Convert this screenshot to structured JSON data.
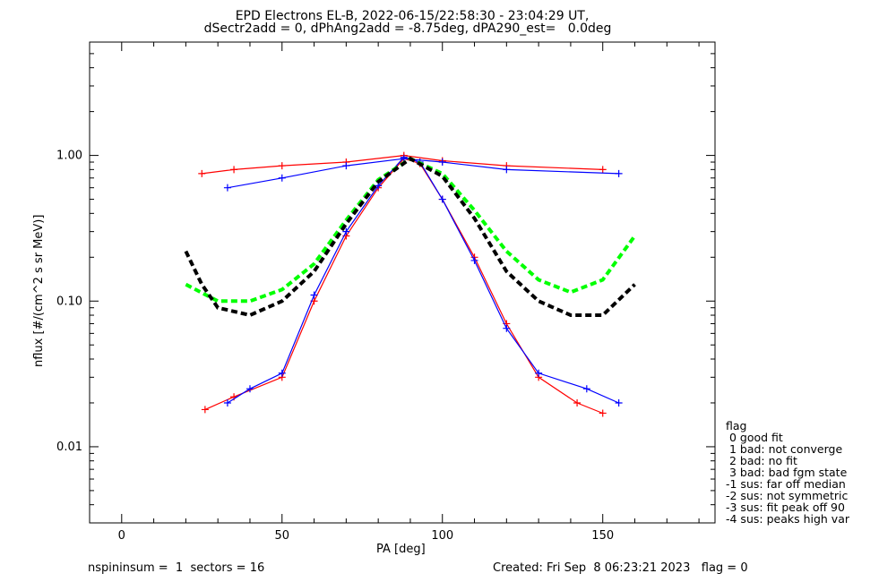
{
  "chart_data": {
    "type": "line",
    "title": "EPD Electrons EL-B, 2022-06-15/22:58:30 - 23:04:29 UT,",
    "subtitle": "dSectr2add = 0, dPhAng2add = -8.75deg, dPA290_est=   0.0deg",
    "xlabel": "PA [deg]",
    "ylabel": "nflux [#/(cm^2 s sr MeV)]",
    "xlim": [
      -10,
      185
    ],
    "ylim": [
      0.003,
      6
    ],
    "yscale": "log",
    "xticks": [
      0,
      50,
      100,
      150
    ],
    "yticks": [
      {
        "value": 0.01,
        "label": "0.01"
      },
      {
        "value": 0.1,
        "label": "0.10"
      },
      {
        "value": 1.0,
        "label": "1.00"
      }
    ],
    "colors": {
      "red": "#ff0000",
      "blue": "#0000ff",
      "green": "#00ff00",
      "black": "#000000"
    },
    "series": [
      {
        "color": "#ff0000",
        "style": "line+plus",
        "x": [
          26,
          35,
          50,
          60,
          70,
          80,
          88,
          93,
          100,
          110,
          120,
          130,
          142,
          150
        ],
        "y": [
          0.018,
          0.022,
          0.03,
          0.1,
          0.28,
          0.6,
          0.95,
          0.88,
          0.5,
          0.2,
          0.07,
          0.03,
          0.02,
          0.017
        ]
      },
      {
        "color": "#0000ff",
        "style": "line+plus",
        "x": [
          33,
          40,
          50,
          60,
          70,
          80,
          88,
          93,
          100,
          110,
          120,
          130,
          145,
          155
        ],
        "y": [
          0.02,
          0.025,
          0.032,
          0.11,
          0.3,
          0.62,
          0.97,
          0.9,
          0.5,
          0.19,
          0.065,
          0.032,
          0.025,
          0.02
        ]
      },
      {
        "color": "#ff0000",
        "style": "line+plus",
        "x": [
          25,
          35,
          50,
          70,
          88,
          100,
          120,
          150
        ],
        "y": [
          0.75,
          0.8,
          0.85,
          0.9,
          1.0,
          0.92,
          0.85,
          0.8
        ]
      },
      {
        "color": "#0000ff",
        "style": "line+plus",
        "x": [
          33,
          50,
          70,
          88,
          100,
          120,
          155
        ],
        "y": [
          0.6,
          0.7,
          0.85,
          0.95,
          0.9,
          0.8,
          0.75
        ]
      },
      {
        "color": "#00ff00",
        "style": "dashed",
        "x": [
          20,
          30,
          40,
          50,
          60,
          70,
          80,
          90,
          100,
          110,
          120,
          130,
          140,
          150,
          160
        ],
        "y": [
          0.13,
          0.1,
          0.1,
          0.12,
          0.18,
          0.36,
          0.68,
          0.95,
          0.75,
          0.42,
          0.22,
          0.14,
          0.115,
          0.14,
          0.28
        ]
      },
      {
        "color": "#000000",
        "style": "dashed",
        "x": [
          20,
          25,
          30,
          40,
          50,
          60,
          70,
          80,
          90,
          100,
          110,
          120,
          130,
          140,
          150,
          160
        ],
        "y": [
          0.22,
          0.13,
          0.09,
          0.08,
          0.1,
          0.16,
          0.34,
          0.66,
          0.95,
          0.72,
          0.37,
          0.16,
          0.1,
          0.08,
          0.08,
          0.13
        ]
      }
    ]
  },
  "xlabel_text": "PA [deg]",
  "ylabel_text": "nflux [#/(cm^2 s sr MeV)]",
  "legend": {
    "rows": [
      "flag",
      " 0 good fit",
      " 1 bad: not converge",
      " 2 bad: no fit",
      " 3 bad: bad fgm state",
      "-1 sus: far off median",
      "-2 sus: not symmetric",
      "-3 sus: fit peak off 90",
      "-4 sus: peaks high var"
    ]
  },
  "footer": {
    "left": "nspininsum =  1  sectors = 16",
    "right": "Created: Fri Sep  8 06:23:21 2023   flag = 0"
  }
}
